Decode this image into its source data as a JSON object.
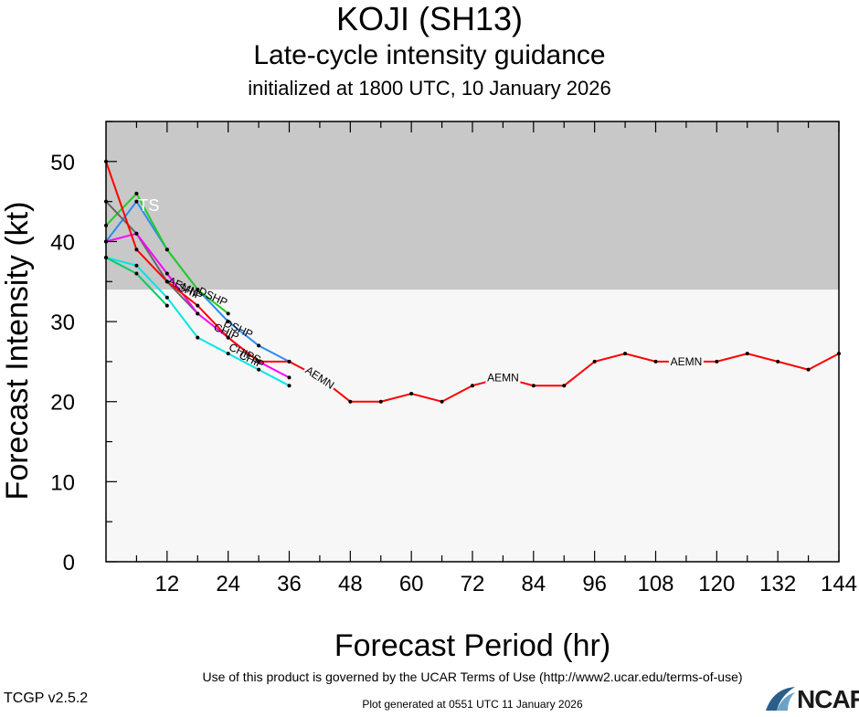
{
  "header": {
    "title": "KOJI (SH13)",
    "subtitle": "Late-cycle intensity guidance",
    "init_line": "initialized at 1800 UTC, 10 January 2026"
  },
  "footer": {
    "terms": "Use of this product is governed by the UCAR Terms of Use (http://www2.ucar.edu/terms-of-use)",
    "generated": "Plot generated at 0551 UTC   11 January 2026",
    "version": "TCGP v2.5.2",
    "logo_text": "NCAR"
  },
  "colors": {
    "ts_band": "#c8c8c8",
    "below_band": "#f7f7f7",
    "aemn": "#ff0000"
  },
  "chart_data": {
    "type": "line",
    "xlabel": "Forecast Period (hr)",
    "ylabel": "Forecast Intensity (kt)",
    "xlim": [
      0,
      144
    ],
    "ylim": [
      0,
      55
    ],
    "xticks": [
      12,
      24,
      36,
      48,
      60,
      72,
      84,
      96,
      108,
      120,
      132,
      144
    ],
    "yticks": [
      0,
      10,
      20,
      30,
      40,
      50
    ],
    "threshold_band": {
      "label": "TS",
      "from": 34,
      "to": 55,
      "color": "#c8c8c8"
    },
    "series": [
      {
        "name": "AEMN",
        "color": "#ff0000",
        "x": [
          0,
          6,
          12,
          18,
          24,
          30,
          36,
          42,
          48,
          54,
          60,
          66,
          72,
          78,
          84,
          90,
          96,
          102,
          108,
          114,
          120,
          126,
          132,
          138,
          144
        ],
        "y": [
          50,
          39,
          35,
          32,
          28,
          25,
          25,
          23,
          20,
          20,
          21,
          20,
          22,
          23,
          22,
          22,
          25,
          26,
          25,
          25,
          25,
          26,
          25,
          24,
          26
        ],
        "labels_at": [
          42,
          78,
          114
        ]
      },
      {
        "name": "",
        "color": "#2a8cf0",
        "x": [
          0,
          6,
          12,
          18,
          24,
          30,
          36
        ],
        "y": [
          40,
          45,
          39,
          34,
          30,
          27,
          25
        ],
        "labels_at": []
      },
      {
        "name": "",
        "color": "#22cc22",
        "x": [
          0,
          6,
          12,
          18,
          24
        ],
        "y": [
          42,
          46,
          39,
          34,
          31
        ],
        "labels_at": []
      },
      {
        "name": "",
        "color": "#666666",
        "x": [
          0,
          6,
          12,
          18
        ],
        "y": [
          45,
          41,
          35,
          31
        ],
        "labels_at": []
      },
      {
        "name": "",
        "color": "#ff00ff",
        "x": [
          0,
          6,
          12,
          18,
          24,
          30,
          36
        ],
        "y": [
          40,
          41,
          36,
          31,
          28,
          25,
          23
        ],
        "labels_at": []
      },
      {
        "name": "",
        "color": "#00e5e5",
        "x": [
          0,
          6,
          12,
          18,
          24,
          30,
          36
        ],
        "y": [
          38,
          37,
          33,
          28,
          26,
          24,
          22
        ],
        "labels_at": []
      },
      {
        "name": "",
        "color": "#00cc66",
        "x": [
          0,
          6,
          12
        ],
        "y": [
          38,
          36,
          32
        ],
        "labels_at": []
      }
    ],
    "annotations": [
      {
        "text": "AEMN",
        "x": 12,
        "y": 34.8
      },
      {
        "text": "SHIP",
        "x": 14,
        "y": 34
      },
      {
        "text": "DSHP",
        "x": 18,
        "y": 33.5
      },
      {
        "text": "CHIP",
        "x": 21,
        "y": 29
      },
      {
        "text": "DSHP",
        "x": 23,
        "y": 29.5
      },
      {
        "text": "CHIPS",
        "x": 24,
        "y": 26.5
      },
      {
        "text": "CHIP",
        "x": 26,
        "y": 25.5
      }
    ]
  }
}
